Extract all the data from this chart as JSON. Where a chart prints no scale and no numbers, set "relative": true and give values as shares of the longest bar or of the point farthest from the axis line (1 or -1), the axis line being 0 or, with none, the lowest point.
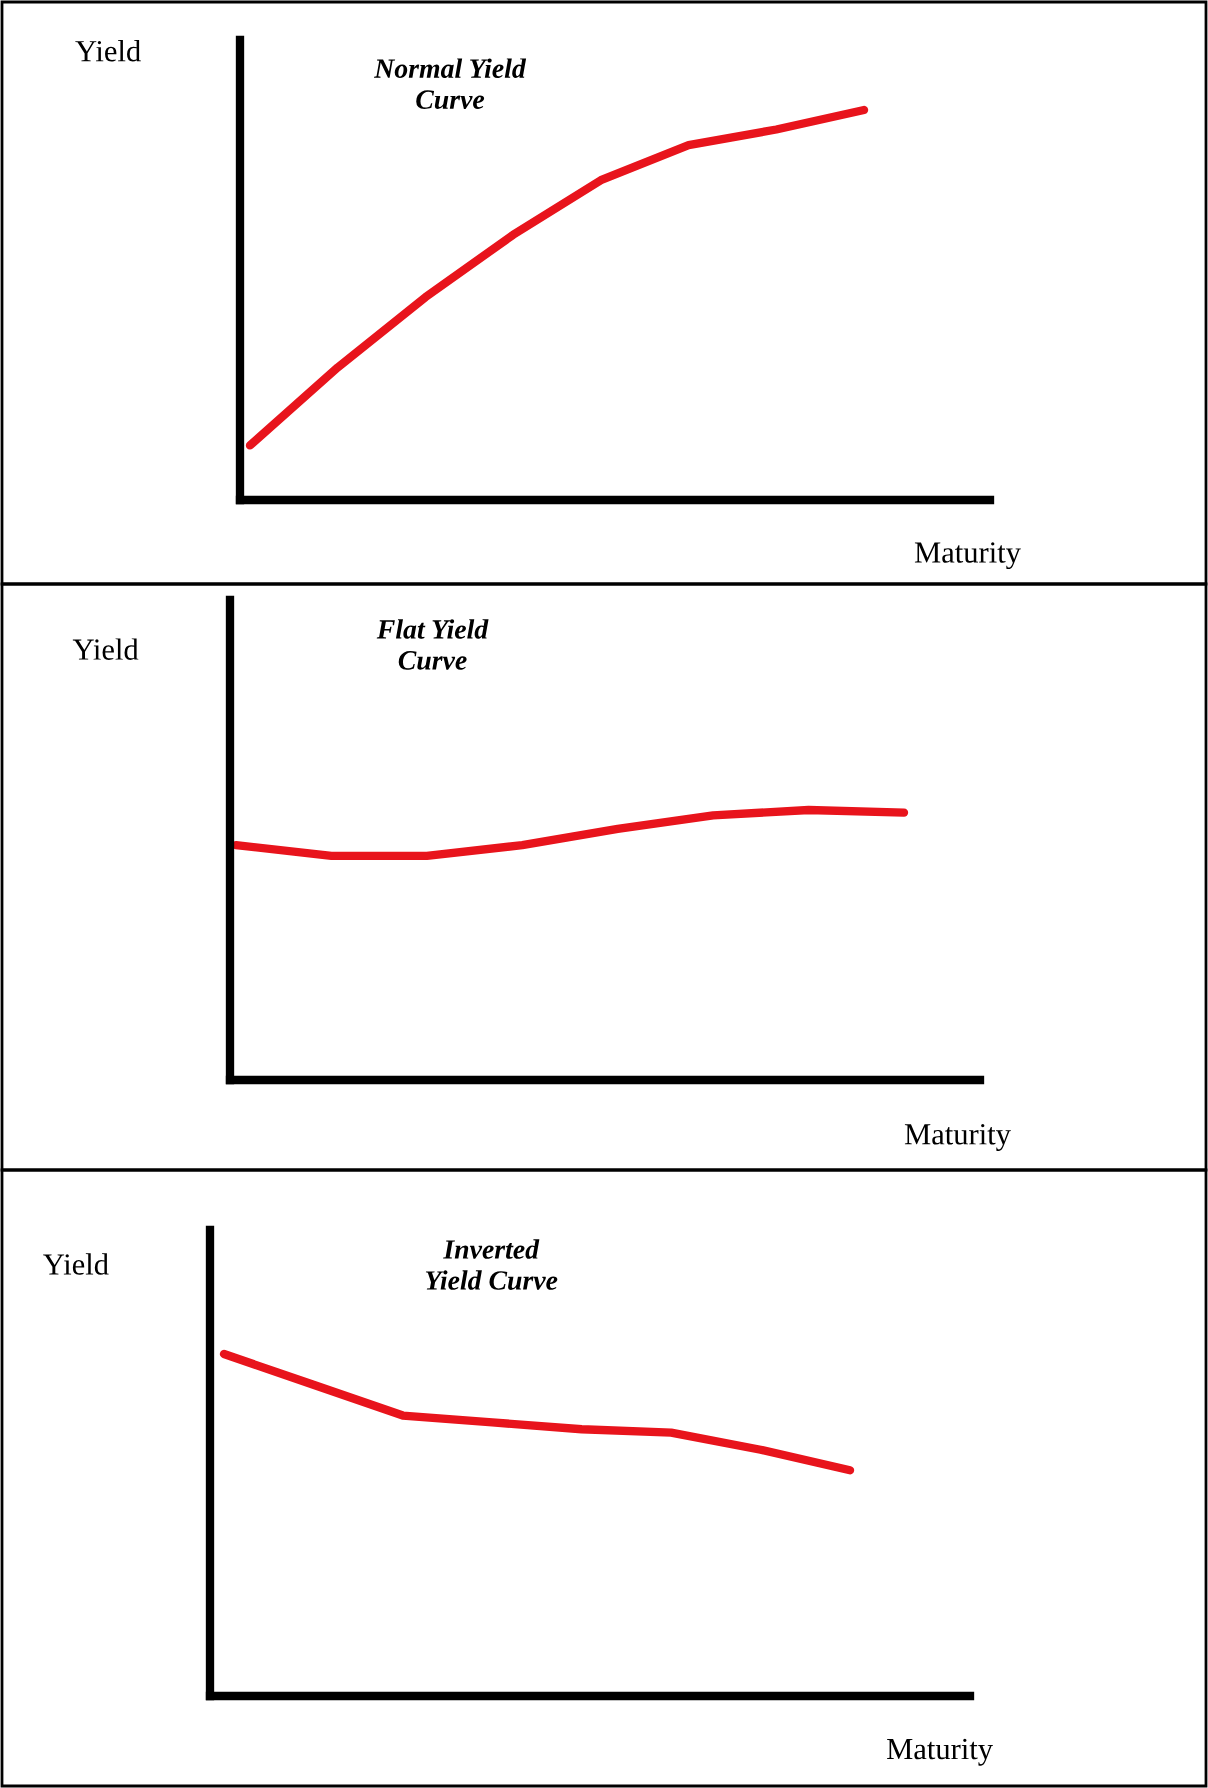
{
  "chart_data": [
    {
      "type": "line",
      "title": "Normal Yield\nCurve",
      "xlabel": "Maturity",
      "ylabel": "Yield",
      "relative": true,
      "categories": [
        null,
        null,
        null,
        null,
        null,
        null,
        null,
        null
      ],
      "series": [
        {
          "color": "#e8141c",
          "values": [
            0.14,
            0.34,
            0.52,
            0.68,
            0.82,
            0.91,
            0.95,
            1.0
          ]
        }
      ]
    },
    {
      "type": "line",
      "title": "Flat Yield\nCurve",
      "xlabel": "Maturity",
      "ylabel": "Yield",
      "relative": true,
      "categories": [
        null,
        null,
        null,
        null,
        null,
        null,
        null,
        null
      ],
      "series": [
        {
          "color": "#e8141c",
          "values": [
            0.87,
            0.83,
            0.83,
            0.87,
            0.93,
            0.98,
            1.0,
            0.99
          ]
        }
      ]
    },
    {
      "type": "line",
      "title": "Inverted\nYield Curve",
      "xlabel": "Maturity",
      "ylabel": "Yield",
      "relative": true,
      "categories": [
        null,
        null,
        null,
        null,
        null,
        null,
        null,
        null
      ],
      "series": [
        {
          "color": "#e8141c",
          "values": [
            1.0,
            0.91,
            0.82,
            0.8,
            0.78,
            0.77,
            0.72,
            0.66
          ]
        }
      ]
    }
  ]
}
